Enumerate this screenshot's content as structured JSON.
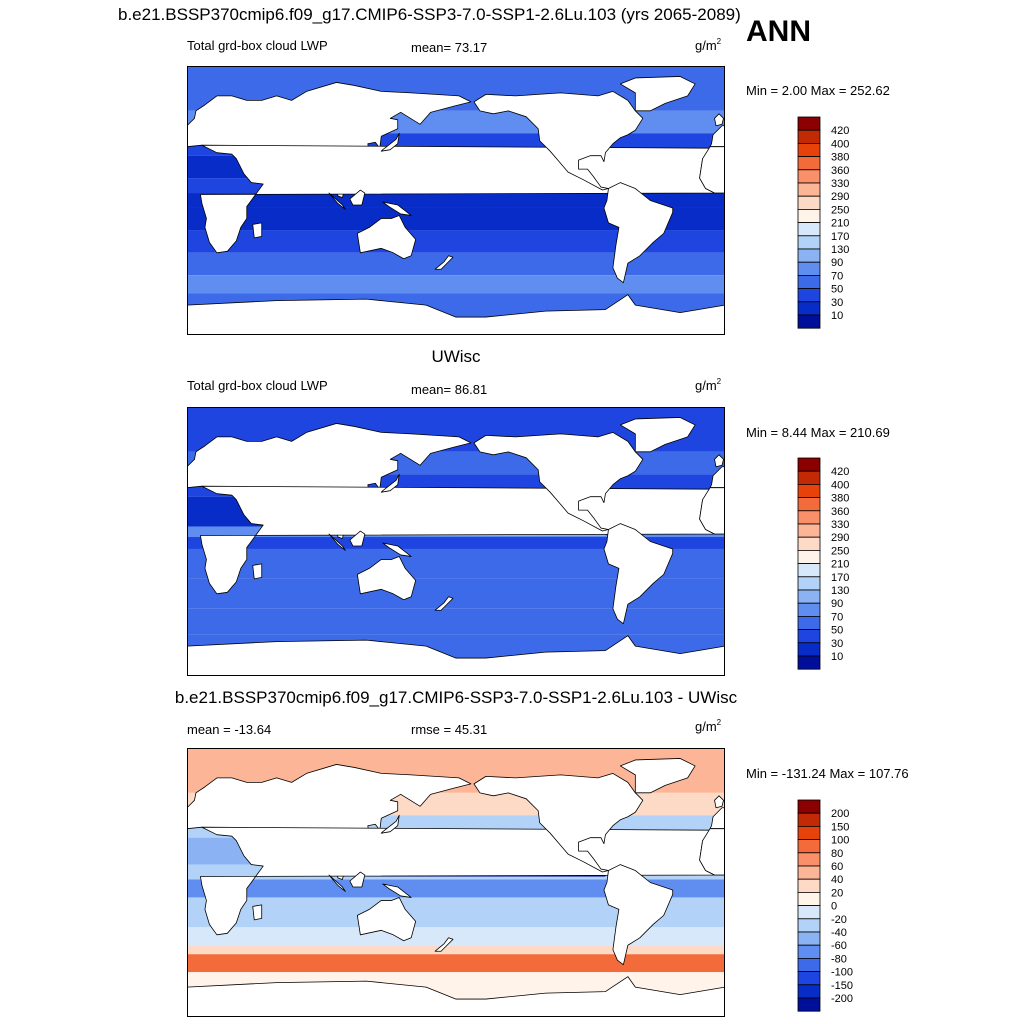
{
  "header": {
    "title": "b.e21.BSSP370cmip6.f09_g17.CMIP6-SSP3-7.0-SSP1-2.6Lu.103 (yrs 2065-2089)",
    "season": "ANN"
  },
  "diff_title": "b.e21.BSSP370cmip6.f09_g17.CMIP6-SSP3-7.0-SSP1-2.6Lu.103 - UWisc",
  "chart_data": [
    {
      "type": "heatmap",
      "title": "b.e21.BSSP370cmip6.f09_g17.CMIP6-SSP3-7.0-SSP1-2.6Lu.103 (yrs 2065-2089)",
      "variable": "Total grd-box cloud LWP",
      "mean_label": "mean=  73.17",
      "mean": 73.17,
      "unit": "g/m",
      "unit_exp": "2",
      "minmax_label": "Min =   2.00 Max = 252.62",
      "min": 2.0,
      "max": 252.62,
      "levels": [
        "420",
        "400",
        "380",
        "360",
        "330",
        "290",
        "250",
        "210",
        "170",
        "130",
        "90",
        "70",
        "50",
        "30",
        "10"
      ],
      "colors": [
        "#8b0000",
        "#c12a05",
        "#e8420b",
        "#f46b3b",
        "#f9906a",
        "#fcb596",
        "#fddac5",
        "#fff3ea",
        "#d7e8fb",
        "#b3d2f8",
        "#8bb3f3",
        "#5f8ef0",
        "#3c6ae8",
        "#1e45e0",
        "#082cc8",
        "#000f99"
      ]
    },
    {
      "type": "heatmap",
      "title": "UWisc",
      "variable": "Total grd-box cloud LWP",
      "mean_label": "mean=  86.81",
      "mean": 86.81,
      "unit": "g/m",
      "unit_exp": "2",
      "minmax_label": "Min =   8.44 Max = 210.69",
      "min": 8.44,
      "max": 210.69,
      "levels": [
        "420",
        "400",
        "380",
        "360",
        "330",
        "290",
        "250",
        "210",
        "170",
        "130",
        "90",
        "70",
        "50",
        "30",
        "10"
      ],
      "colors": [
        "#8b0000",
        "#c12a05",
        "#e8420b",
        "#f46b3b",
        "#f9906a",
        "#fcb596",
        "#fddac5",
        "#fff3ea",
        "#d7e8fb",
        "#b3d2f8",
        "#8bb3f3",
        "#5f8ef0",
        "#3c6ae8",
        "#1e45e0",
        "#082cc8",
        "#000f99"
      ]
    },
    {
      "type": "heatmap",
      "title": "b.e21.BSSP370cmip6.f09_g17.CMIP6-SSP3-7.0-SSP1-2.6Lu.103 - UWisc",
      "mean_label": "mean = -13.64",
      "mean": -13.64,
      "rmse_label": "rmse =  45.31",
      "rmse": 45.31,
      "unit": "g/m",
      "unit_exp": "2",
      "minmax_label": "Min = -131.24 Max = 107.76",
      "min": -131.24,
      "max": 107.76,
      "levels": [
        "200",
        "150",
        "100",
        "80",
        "60",
        "40",
        "20",
        "0",
        "-20",
        "-40",
        "-60",
        "-80",
        "-100",
        "-150",
        "-200"
      ],
      "colors": [
        "#8b0000",
        "#c12a05",
        "#e8420b",
        "#f46b3b",
        "#f9906a",
        "#fcb596",
        "#fddac5",
        "#fff3ea",
        "#d7e8fb",
        "#b3d2f8",
        "#8bb3f3",
        "#5f8ef0",
        "#3c6ae8",
        "#1e45e0",
        "#082cc8",
        "#000f99"
      ]
    }
  ]
}
